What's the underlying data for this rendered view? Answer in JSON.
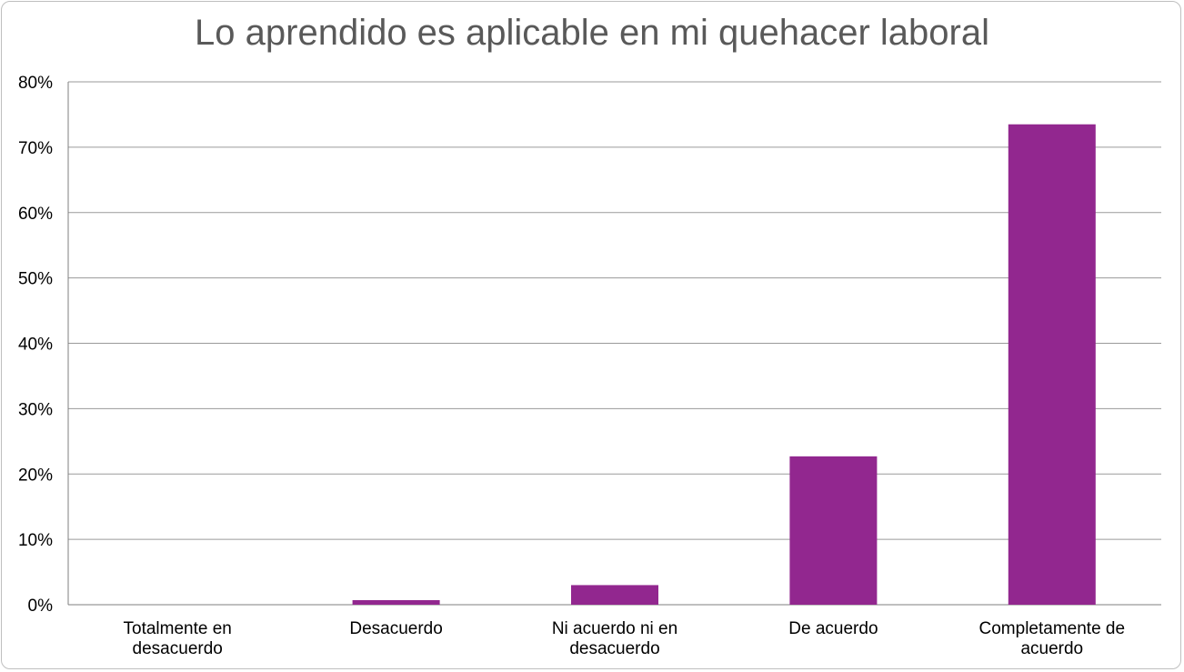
{
  "chart_data": {
    "type": "bar",
    "title": "Lo aprendido es aplicable en mi quehacer laboral",
    "categories": [
      [
        "Totalmente en",
        "desacuerdo"
      ],
      [
        "Desacuerdo"
      ],
      [
        "Ni acuerdo ni en",
        "desacuerdo"
      ],
      [
        "De acuerdo"
      ],
      [
        "Completamente de",
        "acuerdo"
      ]
    ],
    "values": [
      0,
      0.7,
      3,
      22.7,
      73.5
    ],
    "ylim": [
      0,
      80
    ],
    "yticks": [
      "0%",
      "10%",
      "20%",
      "30%",
      "40%",
      "50%",
      "60%",
      "70%",
      "80%"
    ],
    "bar_color": "#92278f",
    "gridlines": true
  }
}
